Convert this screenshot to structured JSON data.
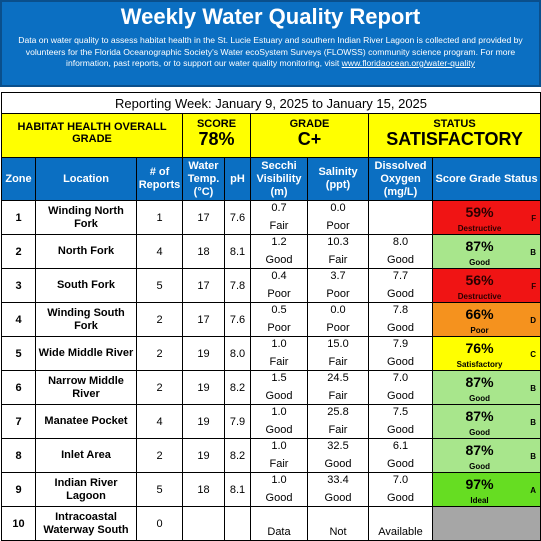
{
  "header": {
    "title": "Weekly Water Quality Report",
    "description": "Data on water quality to assess habitat health in the St. Lucie Estuary and southern Indian River Lagoon is collected and provided by volunteers for the Florida Oceanographic Society's Water ecoSystem Surveys (FLOWSS) community science program.  For more information, past reports, or to support our water quality monitoring, visit ",
    "url": "www.floridaocean.org/water-quality"
  },
  "reporting_week": "Reporting Week: January 9, 2025 to January 15, 2025",
  "overall": {
    "label": "HABITAT HEALTH OVERALL GRADE",
    "score_label": "SCORE",
    "score": "78%",
    "grade_label": "GRADE",
    "grade": "C+",
    "status_label": "STATUS",
    "status": "SATISFACTORY"
  },
  "columns": [
    "Zone",
    "Location",
    "# of Reports",
    "Water Temp. (°C)",
    "pH",
    "Secchi Visibility (m)",
    "Salinity (ppt)",
    "Dissolved Oxygen (mg/L)",
    "Score  Grade Status"
  ],
  "colors": {
    "F": "#f01414",
    "B": "#a8e68c",
    "D": "#f5921e",
    "C": "#ffff00",
    "A": "#66dd22",
    "none": "#a6a6a6"
  },
  "rows": [
    {
      "zone": "1",
      "location": "Winding North Fork",
      "reports": "1",
      "temp": "17",
      "ph": "7.6",
      "secchi": "0.7",
      "secchi_r": "Fair",
      "salinity": "0.0",
      "salinity_r": "Poor",
      "do": "",
      "do_r": "",
      "score": "59%",
      "grade": "F",
      "status": "Destructive"
    },
    {
      "zone": "2",
      "location": "North Fork",
      "reports": "4",
      "temp": "18",
      "ph": "8.1",
      "secchi": "1.2",
      "secchi_r": "Good",
      "salinity": "10.3",
      "salinity_r": "Fair",
      "do": "8.0",
      "do_r": "Good",
      "score": "87%",
      "grade": "B",
      "status": "Good"
    },
    {
      "zone": "3",
      "location": "South Fork",
      "reports": "5",
      "temp": "17",
      "ph": "7.8",
      "secchi": "0.4",
      "secchi_r": "Poor",
      "salinity": "3.7",
      "salinity_r": "Poor",
      "do": "7.7",
      "do_r": "Good",
      "score": "56%",
      "grade": "F",
      "status": "Destructive"
    },
    {
      "zone": "4",
      "location": "Winding South Fork",
      "reports": "2",
      "temp": "17",
      "ph": "7.6",
      "secchi": "0.5",
      "secchi_r": "Poor",
      "salinity": "0.0",
      "salinity_r": "Poor",
      "do": "7.8",
      "do_r": "Good",
      "score": "66%",
      "grade": "D",
      "status": "Poor"
    },
    {
      "zone": "5",
      "location": "Wide Middle River",
      "reports": "2",
      "temp": "19",
      "ph": "8.0",
      "secchi": "1.0",
      "secchi_r": "Fair",
      "salinity": "15.0",
      "salinity_r": "Fair",
      "do": "7.9",
      "do_r": "Good",
      "score": "76%",
      "grade": "C",
      "status": "Satisfactory"
    },
    {
      "zone": "6",
      "location": "Narrow Middle River",
      "reports": "2",
      "temp": "19",
      "ph": "8.2",
      "secchi": "1.5",
      "secchi_r": "Good",
      "salinity": "24.5",
      "salinity_r": "Fair",
      "do": "7.0",
      "do_r": "Good",
      "score": "87%",
      "grade": "B",
      "status": "Good"
    },
    {
      "zone": "7",
      "location": "Manatee Pocket",
      "reports": "4",
      "temp": "19",
      "ph": "7.9",
      "secchi": "1.0",
      "secchi_r": "Good",
      "salinity": "25.8",
      "salinity_r": "Fair",
      "do": "7.5",
      "do_r": "Good",
      "score": "87%",
      "grade": "B",
      "status": "Good"
    },
    {
      "zone": "8",
      "location": "Inlet Area",
      "reports": "2",
      "temp": "19",
      "ph": "8.2",
      "secchi": "1.0",
      "secchi_r": "Fair",
      "salinity": "32.5",
      "salinity_r": "Good",
      "do": "6.1",
      "do_r": "Good",
      "score": "87%",
      "grade": "B",
      "status": "Good"
    },
    {
      "zone": "9",
      "location": "Indian River Lagoon",
      "reports": "5",
      "temp": "18",
      "ph": "8.1",
      "secchi": "1.0",
      "secchi_r": "Good",
      "salinity": "33.4",
      "salinity_r": "Good",
      "do": "7.0",
      "do_r": "Good",
      "score": "97%",
      "grade": "A",
      "status": "Ideal"
    },
    {
      "zone": "10",
      "location": "Intracoastal Waterway South",
      "reports": "0",
      "temp": "",
      "ph": "",
      "secchi": "",
      "secchi_r": "Data",
      "salinity": "",
      "salinity_r": "Not",
      "do": "",
      "do_r": "Available",
      "score": "",
      "grade": "",
      "status": ""
    }
  ]
}
